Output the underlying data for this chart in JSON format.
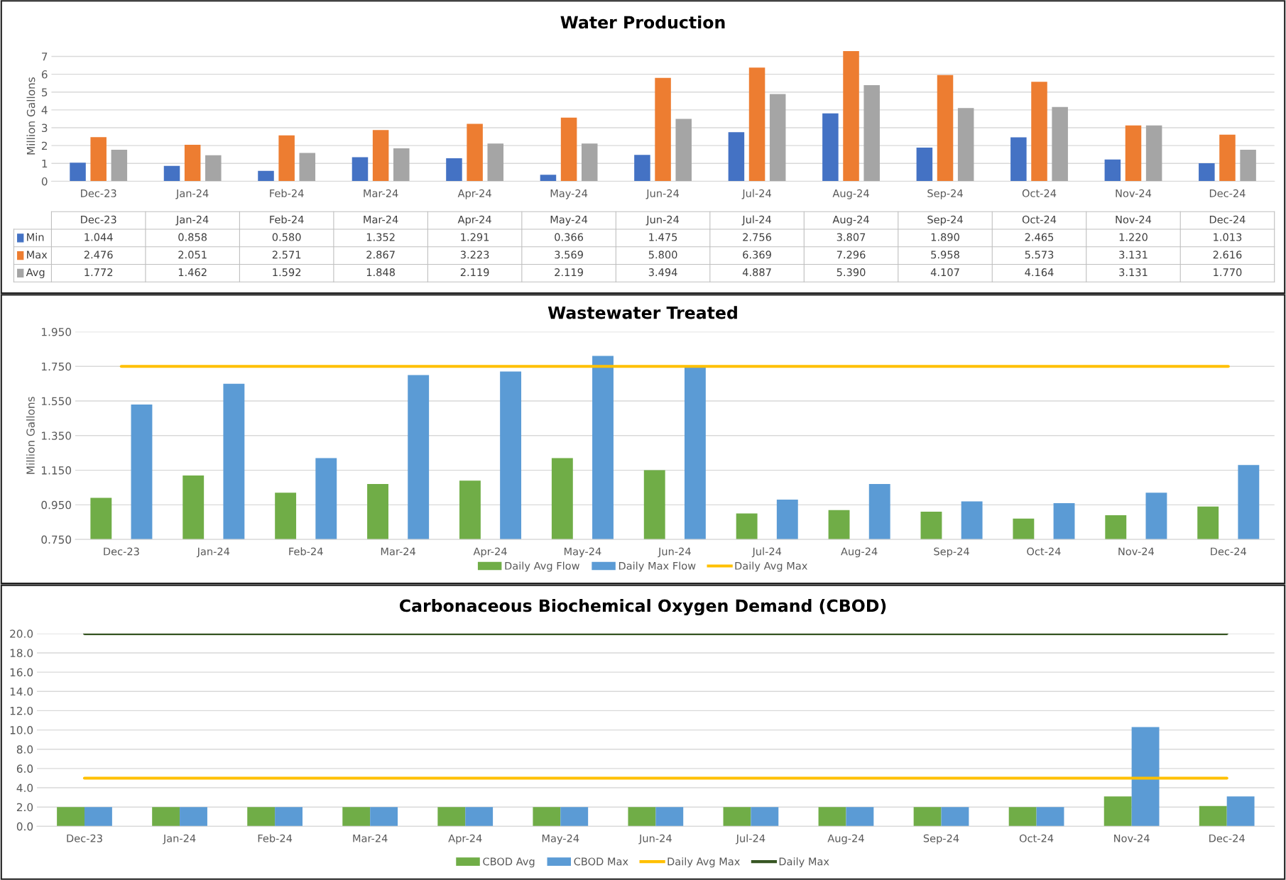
{
  "chart_data": [
    {
      "type": "bar",
      "title": "Water Production",
      "ylabel": "Million Gallons",
      "categories": [
        "Dec-23",
        "Jan-24",
        "Feb-24",
        "Mar-24",
        "Apr-24",
        "May-24",
        "Jun-24",
        "Jul-24",
        "Aug-24",
        "Sep-24",
        "Oct-24",
        "Nov-24",
        "Dec-24"
      ],
      "series": [
        {
          "name": "Min",
          "color": "#4472c4",
          "values": [
            1.044,
            0.858,
            0.58,
            1.352,
            1.291,
            0.366,
            1.475,
            2.756,
            3.807,
            1.89,
            2.465,
            1.22,
            1.013
          ],
          "value_labels": [
            "1.044",
            "0.858",
            "0.580",
            "1.352",
            "1.291",
            "0.366",
            "1.475",
            "2.756",
            "3.807",
            "1.890",
            "2.465",
            "1.220",
            "1.013"
          ]
        },
        {
          "name": "Max",
          "color": "#ed7d31",
          "values": [
            2.476,
            2.051,
            2.571,
            2.867,
            3.223,
            3.569,
            5.8,
            6.369,
            7.296,
            5.958,
            5.573,
            3.131,
            2.616
          ],
          "value_labels": [
            "2.476",
            "2.051",
            "2.571",
            "2.867",
            "3.223",
            "3.569",
            "5.800",
            "6.369",
            "7.296",
            "5.958",
            "5.573",
            "3.131",
            "2.616"
          ]
        },
        {
          "name": "Avg",
          "color": "#a5a5a5",
          "values": [
            1.772,
            1.462,
            1.592,
            1.848,
            2.119,
            2.119,
            3.494,
            4.887,
            5.39,
            4.107,
            4.164,
            3.131,
            1.77
          ],
          "value_labels": [
            "1.772",
            "1.462",
            "1.592",
            "1.848",
            "2.119",
            "2.119",
            "3.494",
            "4.887",
            "5.390",
            "4.107",
            "4.164",
            "3.131",
            "1.770"
          ]
        }
      ],
      "ylim": [
        0,
        7.3
      ],
      "yticks": [
        0,
        1,
        2,
        3,
        4,
        5,
        6,
        7
      ],
      "grid": "y",
      "legend": "bottom"
    },
    {
      "type": "bar",
      "title": "Wastewater Treated",
      "ylabel": "Million Gallons",
      "categories": [
        "Dec-23",
        "Jan-24",
        "Feb-24",
        "Mar-24",
        "Apr-24",
        "May-24",
        "Jun-24",
        "Jul-24",
        "Aug-24",
        "Sep-24",
        "Oct-24",
        "Nov-24",
        "Dec-24"
      ],
      "series": [
        {
          "name": "Daily Avg Flow",
          "color": "#70ad47",
          "values": [
            0.99,
            1.12,
            1.02,
            1.07,
            1.09,
            1.22,
            1.15,
            0.9,
            0.92,
            0.91,
            0.87,
            0.89,
            0.94
          ]
        },
        {
          "name": "Daily Max Flow",
          "color": "#5b9bd5",
          "values": [
            1.53,
            1.65,
            1.22,
            1.7,
            1.72,
            1.81,
            1.75,
            0.98,
            1.07,
            0.97,
            0.96,
            1.02,
            1.18
          ]
        },
        {
          "name": "Daily Avg Max",
          "type": "line",
          "color": "#ffc000",
          "values": [
            1.75,
            1.75,
            1.75,
            1.75,
            1.75,
            1.75,
            1.75,
            1.75,
            1.75,
            1.75,
            1.75,
            1.75,
            1.75
          ]
        }
      ],
      "ylim": [
        0.75,
        1.95
      ],
      "yticks": [
        {
          "value": 0.75,
          "label": "0.750"
        },
        {
          "value": 0.95,
          "label": "0.950"
        },
        {
          "value": 1.15,
          "label": "1.150"
        },
        {
          "value": 1.35,
          "label": "1.350"
        },
        {
          "value": 1.55,
          "label": "1.550"
        },
        {
          "value": 1.75,
          "label": "1.750"
        },
        {
          "value": 1.95,
          "label": "1.950"
        }
      ],
      "grid": "y",
      "legend": "bottom"
    },
    {
      "type": "bar",
      "title": "Carbonaceous Biochemical Oxygen Demand (CBOD)",
      "categories": [
        "Dec-23",
        "Jan-24",
        "Feb-24",
        "Mar-24",
        "Apr-24",
        "May-24",
        "Jun-24",
        "Jul-24",
        "Aug-24",
        "Sep-24",
        "Oct-24",
        "Nov-24",
        "Dec-24"
      ],
      "series": [
        {
          "name": "CBOD Avg",
          "color": "#70ad47",
          "values": [
            2.0,
            2.0,
            2.0,
            2.0,
            2.0,
            2.0,
            2.0,
            2.0,
            2.0,
            2.0,
            2.0,
            3.1,
            2.1
          ]
        },
        {
          "name": "CBOD Max",
          "color": "#5b9bd5",
          "values": [
            2.0,
            2.0,
            2.0,
            2.0,
            2.0,
            2.0,
            2.0,
            2.0,
            2.0,
            2.0,
            2.0,
            10.3,
            3.1
          ]
        },
        {
          "name": "Daily Avg Max",
          "type": "line",
          "color": "#ffc000",
          "values": [
            5,
            5,
            5,
            5,
            5,
            5,
            5,
            5,
            5,
            5,
            5,
            5,
            5
          ]
        },
        {
          "name": "Daily Max",
          "type": "line",
          "color": "#375623",
          "values": [
            20,
            20,
            20,
            20,
            20,
            20,
            20,
            20,
            20,
            20,
            20,
            20,
            20
          ]
        }
      ],
      "ylim": [
        0,
        20
      ],
      "yticks": [
        {
          "value": 0,
          "label": "0.0"
        },
        {
          "value": 2,
          "label": "2.0"
        },
        {
          "value": 4,
          "label": "4.0"
        },
        {
          "value": 6,
          "label": "6.0"
        },
        {
          "value": 8,
          "label": "8.0"
        },
        {
          "value": 10,
          "label": "10.0"
        },
        {
          "value": 12,
          "label": "12.0"
        },
        {
          "value": 14,
          "label": "14.0"
        },
        {
          "value": 16,
          "label": "16.0"
        },
        {
          "value": 18,
          "label": "18.0"
        },
        {
          "value": 20,
          "label": "20.0"
        }
      ],
      "grid": "y",
      "legend": "bottom"
    }
  ]
}
